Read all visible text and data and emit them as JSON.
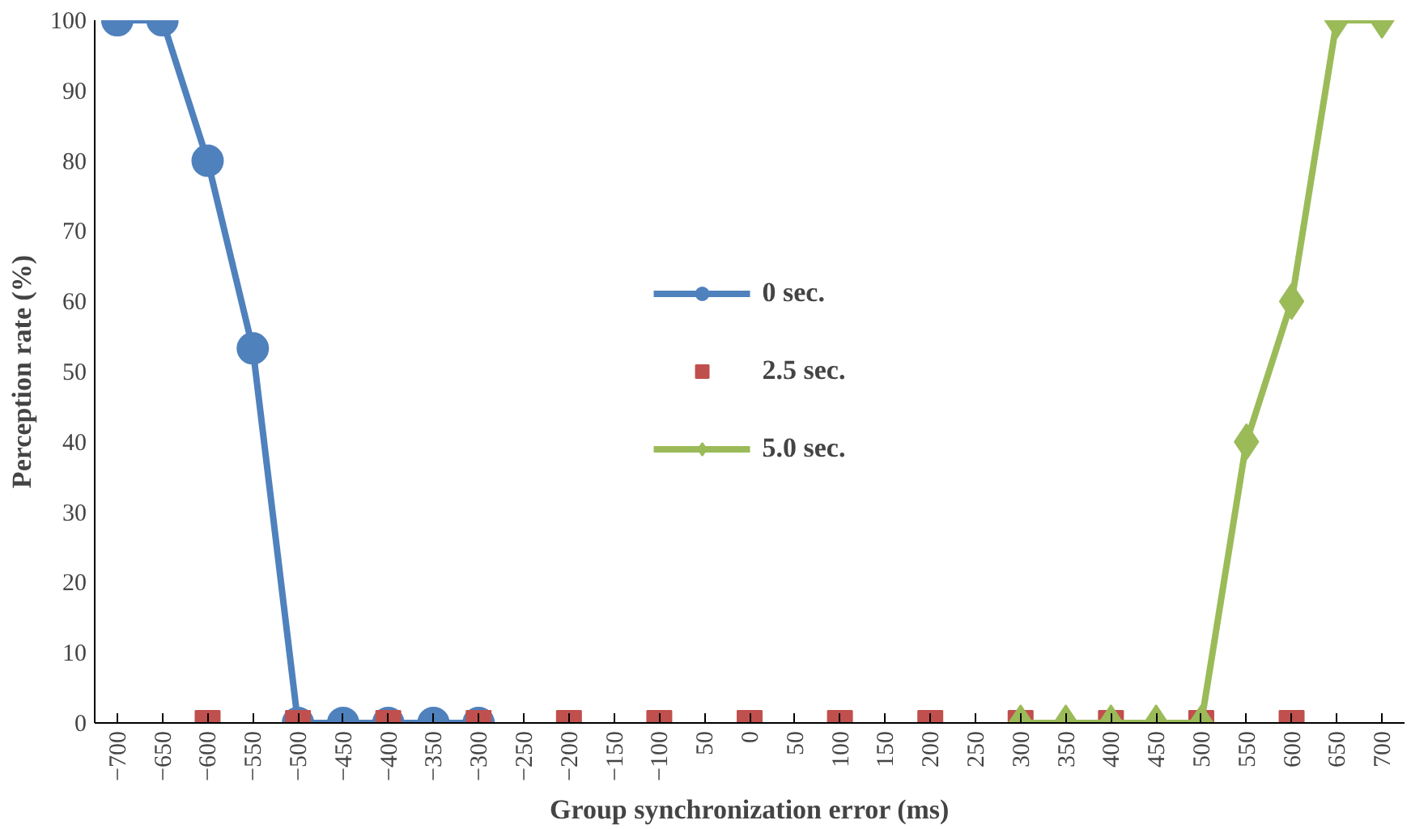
{
  "chart_data": {
    "type": "line",
    "xlabel": "Group synchronization error (ms)",
    "ylabel": "Perception rate (%)",
    "categories": [
      "−700",
      "−650",
      "−600",
      "−550",
      "−500",
      "−450",
      "−400",
      "−350",
      "−300",
      "−250",
      "−200",
      "−150",
      "−100",
      "50",
      "0",
      "50",
      "100",
      "150",
      "200",
      "250",
      "300",
      "350",
      "400",
      "450",
      "500",
      "550",
      "600",
      "650",
      "700"
    ],
    "ylim": [
      0,
      100
    ],
    "yticks": [
      0,
      10,
      20,
      30,
      40,
      50,
      60,
      70,
      80,
      90,
      100
    ],
    "grid": false,
    "legend": "center",
    "series": [
      {
        "name": "0 sec.",
        "color": "#4f81bd",
        "marker": "circle",
        "values": [
          100,
          100,
          80,
          53.3,
          0,
          0,
          0,
          0,
          0,
          null,
          null,
          null,
          null,
          null,
          null,
          null,
          null,
          null,
          null,
          null,
          null,
          null,
          null,
          null,
          null,
          null,
          null,
          null,
          null
        ]
      },
      {
        "name": "2.5 sec.",
        "type": "scatter",
        "color": "#c0504d",
        "marker": "square",
        "values": [
          null,
          null,
          0,
          null,
          0,
          null,
          0,
          null,
          0,
          null,
          0,
          null,
          0,
          null,
          0,
          null,
          0,
          null,
          0,
          null,
          0,
          null,
          0,
          null,
          0,
          null,
          0,
          null,
          null
        ]
      },
      {
        "name": "5.0 sec.",
        "color": "#9bbb59",
        "marker": "diamond",
        "values": [
          null,
          null,
          null,
          null,
          null,
          null,
          null,
          null,
          null,
          null,
          null,
          null,
          null,
          null,
          null,
          null,
          null,
          null,
          null,
          null,
          0,
          0,
          0,
          0,
          0,
          40,
          60,
          100,
          100
        ]
      }
    ]
  }
}
